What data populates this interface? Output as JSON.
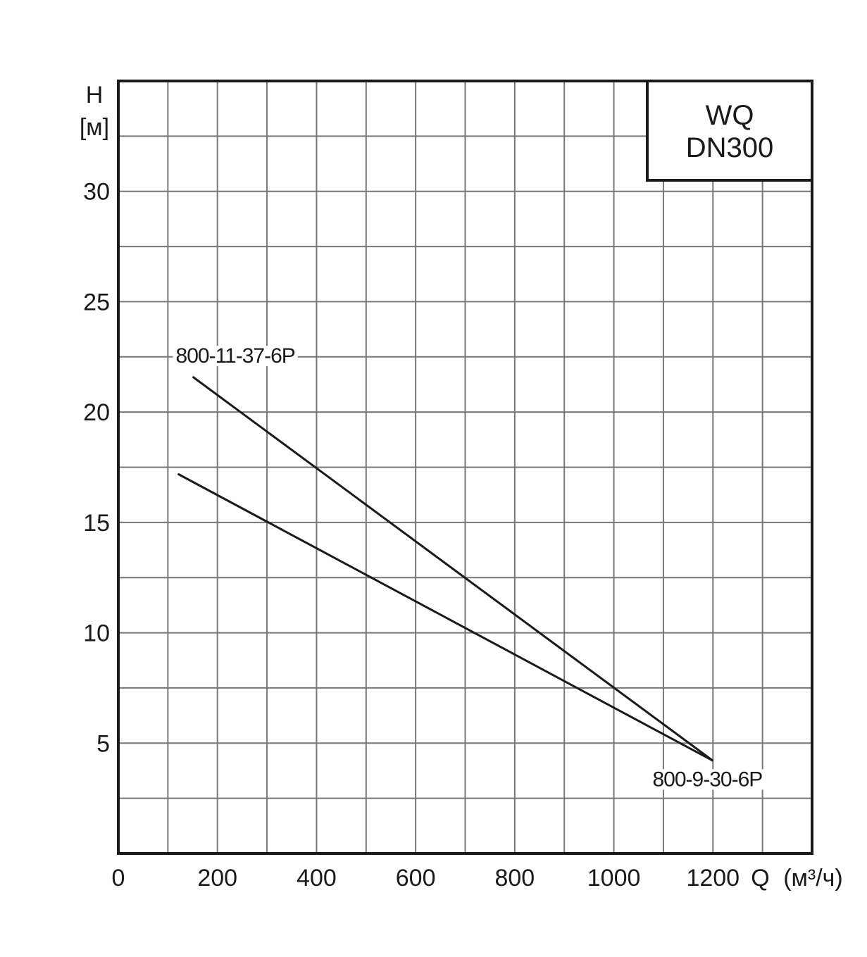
{
  "chart_data": {
    "type": "line",
    "title": [
      "WQ",
      "DN300"
    ],
    "ylabel": {
      "symbol": "H",
      "unit": "[м]"
    },
    "xlabel": {
      "symbol": "Q",
      "unit": "(м³/ч)"
    },
    "xlim": [
      0,
      1400
    ],
    "ylim": [
      0,
      35
    ],
    "x_ticks": [
      0,
      200,
      400,
      600,
      800,
      1000,
      1200
    ],
    "y_ticks": [
      5,
      10,
      15,
      20,
      25,
      30
    ],
    "grid": true,
    "series": [
      {
        "name": "800-11-37-6P",
        "x": [
          150,
          1200
        ],
        "y": [
          21.6,
          4.2
        ]
      },
      {
        "name": "800-9-30-6P",
        "x": [
          120,
          1200
        ],
        "y": [
          17.2,
          4.2
        ]
      }
    ]
  }
}
